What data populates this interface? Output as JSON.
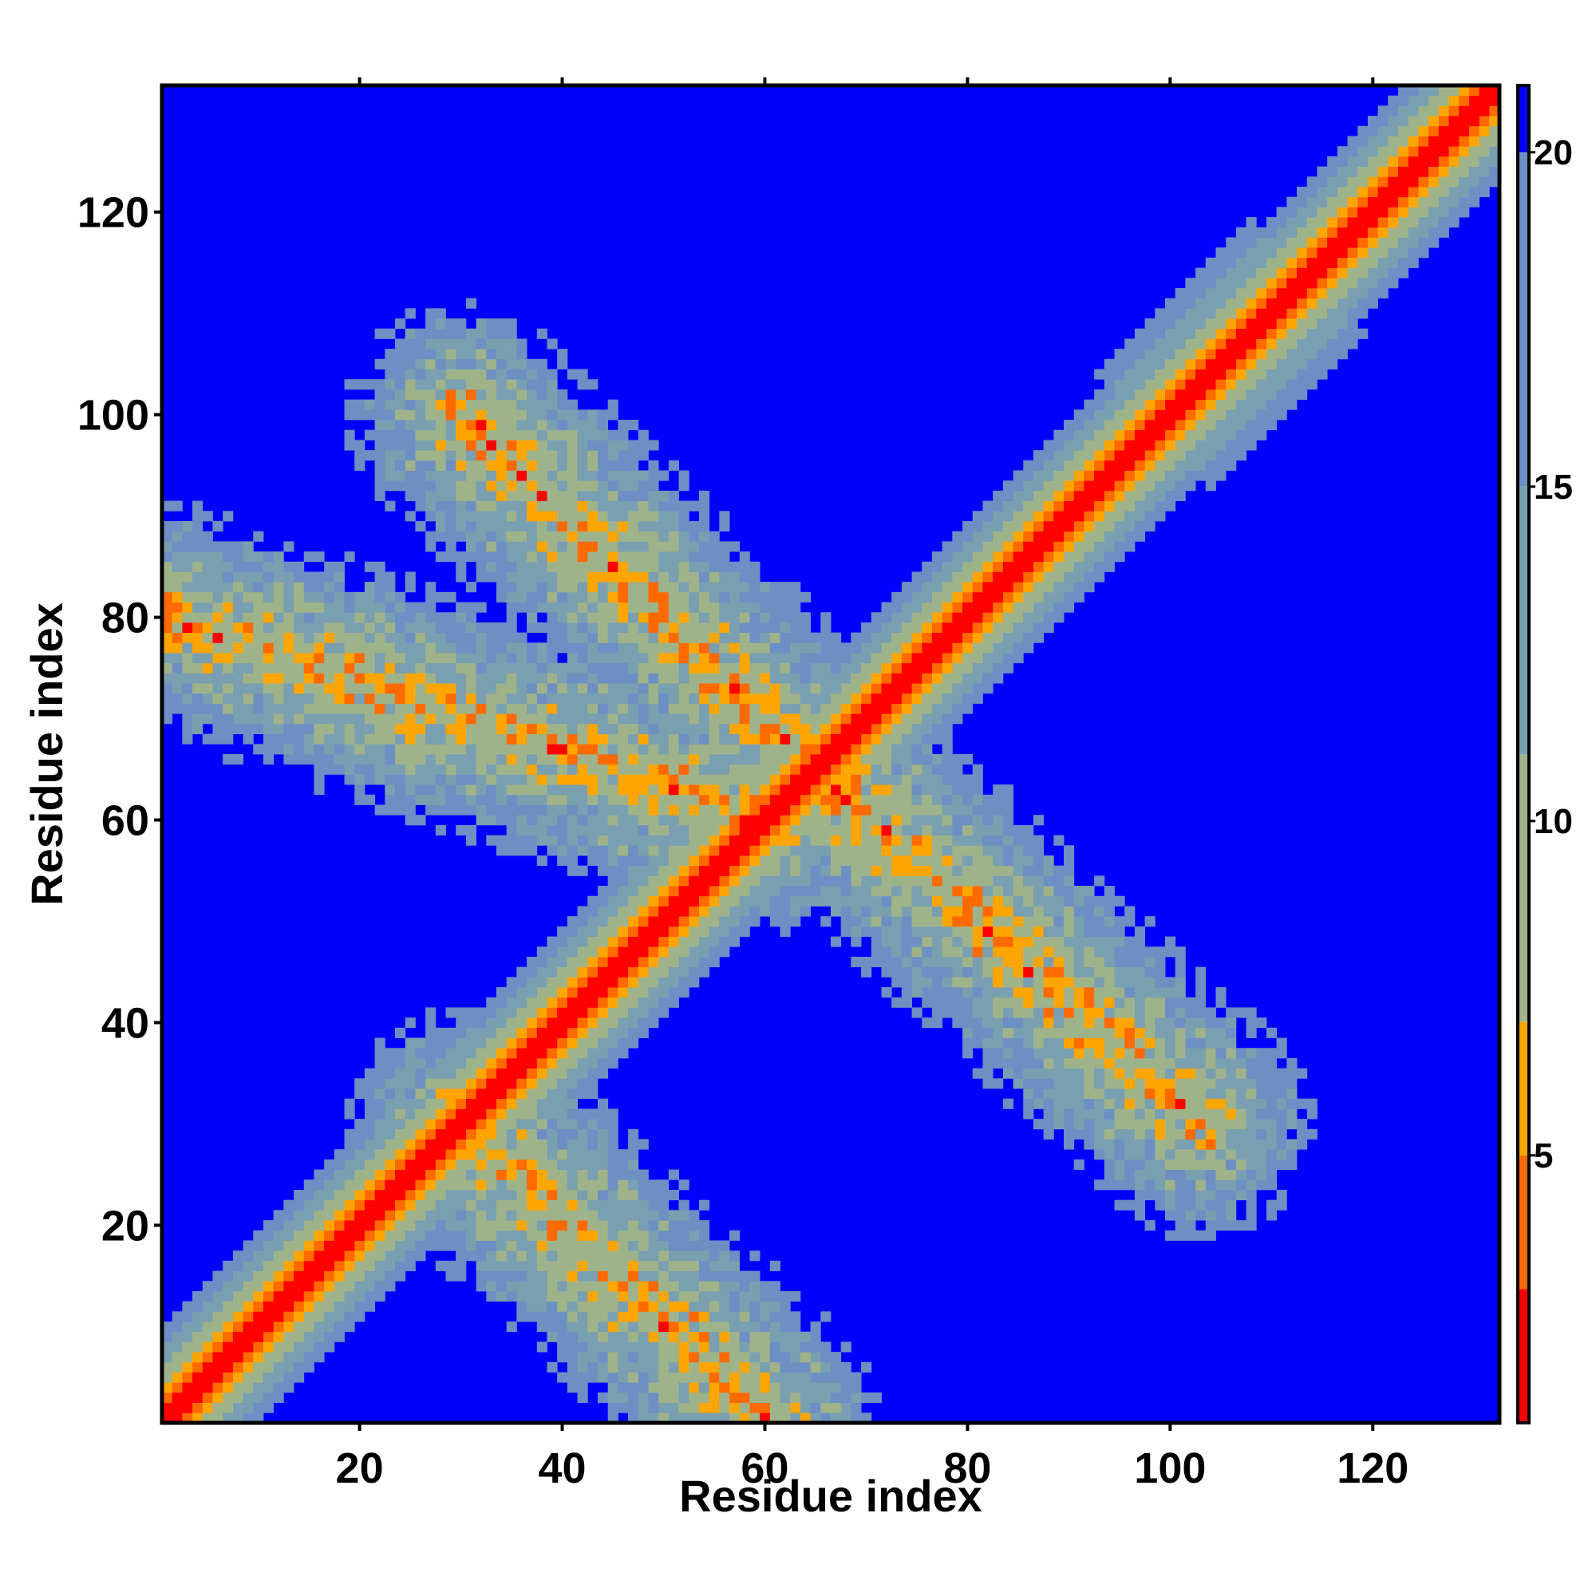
{
  "chart_data": {
    "type": "heatmap",
    "xlabel": "Residue index",
    "ylabel": "Residue index",
    "n_residues": 132,
    "xlim": [
      1,
      132
    ],
    "ylim": [
      1,
      132
    ],
    "x_ticks": [
      20,
      40,
      60,
      80,
      100,
      120
    ],
    "y_ticks": [
      20,
      40,
      60,
      80,
      100,
      120
    ],
    "colorbar": {
      "ticks": [
        5,
        10,
        15,
        20
      ],
      "range": [
        1,
        21
      ],
      "placement": "right"
    },
    "color_scale": [
      {
        "max": 3,
        "color": "#ff0000"
      },
      {
        "max": 5,
        "color": "#ff6a00"
      },
      {
        "max": 7,
        "color": "#ffa500"
      },
      {
        "max": 11,
        "color": "#9fb38a"
      },
      {
        "max": 15,
        "color": "#7a9fb0"
      },
      {
        "max": 20,
        "color": "#6d8fc3"
      },
      {
        "max": 999,
        "color": "#0000ff"
      }
    ],
    "structure": {
      "diagonal": "distance rises from ~1 on the diagonal to >20 about 10 residues away",
      "contact_bands": [
        {
          "from": [
            1,
            80
          ],
          "to": [
            60,
            60
          ],
          "description": "off-diagonal band"
        },
        {
          "from": [
            30,
            100
          ],
          "to": [
            65,
            65
          ],
          "description": "off-diagonal band"
        },
        {
          "from": [
            30,
            30
          ],
          "to": [
            60,
            1
          ],
          "description": "off-diagonal band"
        },
        {
          "from": [
            65,
            65
          ],
          "to": [
            103,
            30
          ],
          "description": "off-diagonal band"
        },
        {
          "from": [
            100,
            100
          ],
          "to": [
            112,
            112
          ],
          "description": "near-diagonal broadening"
        }
      ]
    }
  }
}
